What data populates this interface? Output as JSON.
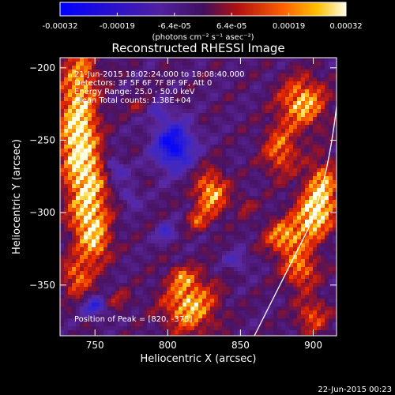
{
  "colorbar": {
    "ticks": [
      "-0.00032",
      "-0.00019",
      "-6.4e-05",
      "6.4e-05",
      "0.00019",
      "0.00032"
    ],
    "units": "(photons cm⁻² s⁻¹ asec⁻²)"
  },
  "chart_data": {
    "type": "heatmap",
    "title": "Reconstructed RHESSI Image",
    "xlabel": "Heliocentric X (arcsec)",
    "ylabel": "Heliocentric Y (arcsec)",
    "xlim": [
      726,
      916
    ],
    "ylim": [
      -385,
      -193
    ],
    "x_ticks": [
      "750",
      "800",
      "850",
      "900"
    ],
    "y_ticks": [
      "-200",
      "-250",
      "-300",
      "-350"
    ],
    "clim": [
      -0.00032,
      0.00032
    ],
    "colormap": "blue-purple-red-orange-yellow-white",
    "annotations": [
      "21-Jun-2015 18:02:24.000 to 18:08:40.000",
      "Detectors: 3F 5F 6F 7F 8F 9F, Att 0",
      "Energy Range: 25.0 - 50.0 keV",
      "Clean    Total counts: 1.38E+04"
    ],
    "peak_label": "Position of Peak = [820, -375]",
    "limb_curve": true
  },
  "footer": {
    "timestamp": "22-Jun-2015 00:23"
  }
}
